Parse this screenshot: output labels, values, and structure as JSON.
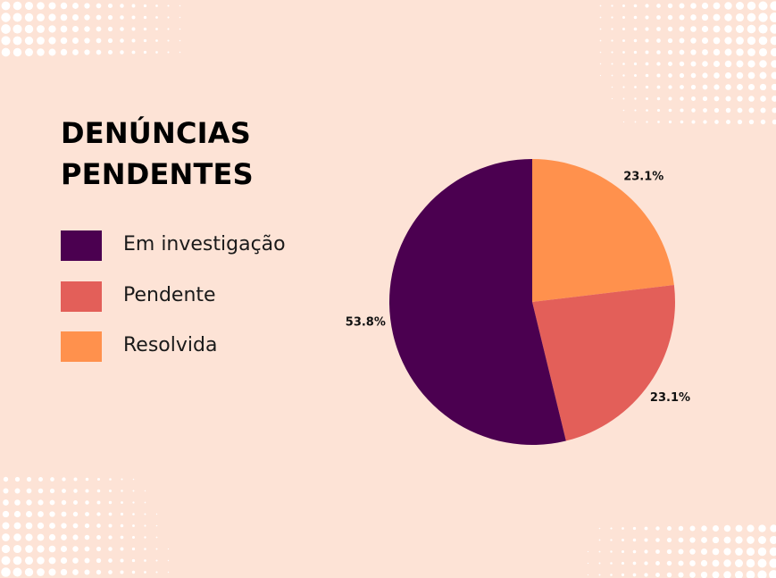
{
  "title": {
    "line1": "DENÚNCIAS",
    "line2": "PENDENTES"
  },
  "legend": [
    {
      "label": "Em investigação",
      "color": "#4b0050"
    },
    {
      "label": "Pendente",
      "color": "#e35f59"
    },
    {
      "label": "Resolvida",
      "color": "#ff914d"
    }
  ],
  "chart_data": {
    "type": "pie",
    "slices": [
      {
        "name": "Resolvida",
        "value": 23.1,
        "label": "23.1%",
        "color": "#ff914d"
      },
      {
        "name": "Pendente",
        "value": 23.1,
        "label": "23.1%",
        "color": "#e35f59"
      },
      {
        "name": "Em investigação",
        "value": 53.8,
        "label": "53.8%",
        "color": "#4b0050"
      }
    ],
    "start": "12 o'clock",
    "direction": "clockwise",
    "legend_position": "left"
  },
  "colors": {
    "background": "#fde3d6",
    "dots": "#ffffff"
  }
}
